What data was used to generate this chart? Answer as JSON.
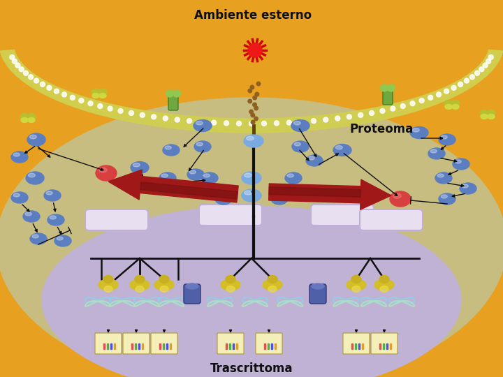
{
  "title_top": "Ambiente esterno",
  "label_proteoma": "Proteoma",
  "label_trascrittoma": "Trascrittoma",
  "bg_orange": "#E8A020",
  "bg_cell": "#C8BD80",
  "bg_nucleus": "#C0B2D5",
  "mem_color": "#D8D858",
  "mem_stripe": "#F0F090",
  "blue_oval": "#5A7EC0",
  "blue_oval_light": "#7AAAE0",
  "red_oval": "#D84040",
  "yellow_tf": "#D8C030",
  "green_rec": "#70A840",
  "arrow_red": "#A01818",
  "arrow_black": "#101010",
  "text_color": "#101010",
  "figsize": [
    7.2,
    5.4
  ],
  "dpi": 100
}
